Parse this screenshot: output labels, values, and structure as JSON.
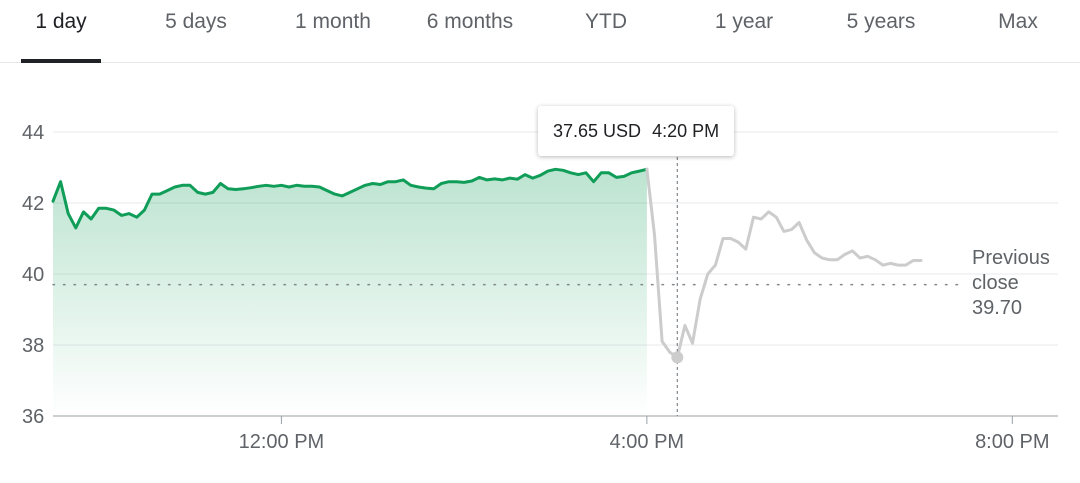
{
  "tabs": [
    {
      "label": "1 day",
      "active": true
    },
    {
      "label": "5 days",
      "active": false
    },
    {
      "label": "1 month",
      "active": false
    },
    {
      "label": "6 months",
      "active": false
    },
    {
      "label": "YTD",
      "active": false
    },
    {
      "label": "1 year",
      "active": false
    },
    {
      "label": "5 years",
      "active": false
    },
    {
      "label": "Max",
      "active": false
    }
  ],
  "tooltip": {
    "price": "37.65 USD",
    "time": "4:20 PM"
  },
  "previous_close": {
    "line1": "Previous",
    "line2": "close",
    "value": "39.70"
  },
  "colors": {
    "market_line": "#0f9d58",
    "after_hours_line": "#cccccc",
    "grid": "#e8eaed",
    "axis_text": "#5f6368"
  },
  "chart_data": {
    "type": "line",
    "xlabel": "",
    "ylabel": "",
    "ylim": [
      36,
      44
    ],
    "xlim": [
      "9:30 AM",
      "8:30 PM"
    ],
    "y_ticks": [
      "36",
      "38",
      "40",
      "42",
      "44"
    ],
    "x_ticks": [
      "12:00 PM",
      "4:00 PM",
      "8:00 PM"
    ],
    "previous_close": 39.7,
    "grid": true,
    "series": [
      {
        "session": "market",
        "x": [
          "9:30 AM",
          "9:35 AM",
          "9:40 AM",
          "9:45 AM",
          "9:50 AM",
          "9:55 AM",
          "10:00 AM",
          "10:05 AM",
          "10:10 AM",
          "10:15 AM",
          "10:20 AM",
          "10:25 AM",
          "10:30 AM",
          "10:35 AM",
          "10:40 AM",
          "10:45 AM",
          "10:50 AM",
          "10:55 AM",
          "11:00 AM",
          "11:05 AM",
          "11:10 AM",
          "11:15 AM",
          "11:20 AM",
          "11:25 AM",
          "11:30 AM",
          "11:35 AM",
          "11:40 AM",
          "11:45 AM",
          "11:50 AM",
          "11:55 AM",
          "12:00 PM",
          "12:05 PM",
          "12:10 PM",
          "12:15 PM",
          "12:20 PM",
          "12:25 PM",
          "12:30 PM",
          "12:35 PM",
          "12:40 PM",
          "12:45 PM",
          "12:50 PM",
          "12:55 PM",
          "1:00 PM",
          "1:05 PM",
          "1:10 PM",
          "1:15 PM",
          "1:20 PM",
          "1:25 PM",
          "1:30 PM",
          "1:35 PM",
          "1:40 PM",
          "1:45 PM",
          "1:50 PM",
          "1:55 PM",
          "2:00 PM",
          "2:05 PM",
          "2:10 PM",
          "2:15 PM",
          "2:20 PM",
          "2:25 PM",
          "2:30 PM",
          "2:35 PM",
          "2:40 PM",
          "2:45 PM",
          "2:50 PM",
          "2:55 PM",
          "3:00 PM",
          "3:05 PM",
          "3:10 PM",
          "3:15 PM",
          "3:20 PM",
          "3:25 PM",
          "3:30 PM",
          "3:35 PM",
          "3:40 PM",
          "3:45 PM",
          "3:50 PM",
          "3:55 PM",
          "4:00 PM"
        ],
        "values": [
          42.05,
          42.6,
          41.7,
          41.3,
          41.75,
          41.55,
          41.85,
          41.85,
          41.8,
          41.65,
          41.7,
          41.6,
          41.8,
          42.25,
          42.25,
          42.35,
          42.45,
          42.5,
          42.5,
          42.3,
          42.25,
          42.3,
          42.55,
          42.4,
          42.38,
          42.4,
          42.43,
          42.47,
          42.5,
          42.47,
          42.5,
          42.45,
          42.5,
          42.47,
          42.47,
          42.45,
          42.35,
          42.25,
          42.2,
          42.3,
          42.4,
          42.5,
          42.55,
          42.52,
          42.6,
          42.6,
          42.65,
          42.5,
          42.45,
          42.42,
          42.4,
          42.55,
          42.6,
          42.6,
          42.58,
          42.62,
          42.72,
          42.65,
          42.68,
          42.65,
          42.7,
          42.67,
          42.8,
          42.7,
          42.78,
          42.9,
          42.95,
          42.92,
          42.85,
          42.8,
          42.85,
          42.6,
          42.85,
          42.85,
          42.72,
          42.75,
          42.85,
          42.9,
          42.95
        ]
      },
      {
        "session": "after-hours",
        "x": [
          "4:00 PM",
          "4:05 PM",
          "4:10 PM",
          "4:15 PM",
          "4:20 PM",
          "4:25 PM",
          "4:30 PM",
          "4:35 PM",
          "4:40 PM",
          "4:45 PM",
          "4:50 PM",
          "4:55 PM",
          "5:00 PM",
          "5:05 PM",
          "5:10 PM",
          "5:15 PM",
          "5:20 PM",
          "5:25 PM",
          "5:30 PM",
          "5:35 PM",
          "5:40 PM",
          "5:45 PM",
          "5:50 PM",
          "5:55 PM",
          "6:00 PM",
          "6:05 PM",
          "6:10 PM",
          "6:15 PM",
          "6:20 PM",
          "6:25 PM",
          "6:30 PM",
          "6:35 PM",
          "6:40 PM",
          "6:45 PM",
          "6:50 PM",
          "6:55 PM",
          "7:00 PM"
        ],
        "values": [
          42.95,
          41.1,
          38.1,
          37.8,
          37.65,
          38.55,
          38.05,
          39.3,
          40.0,
          40.25,
          41.0,
          41.0,
          40.9,
          40.7,
          41.6,
          41.55,
          41.75,
          41.6,
          41.2,
          41.25,
          41.45,
          40.95,
          40.6,
          40.45,
          40.4,
          40.4,
          40.55,
          40.65,
          40.45,
          40.5,
          40.4,
          40.25,
          40.3,
          40.25,
          40.25,
          40.38,
          40.38
        ]
      }
    ],
    "highlight": {
      "x": "4:20 PM",
      "y": 37.65
    }
  }
}
